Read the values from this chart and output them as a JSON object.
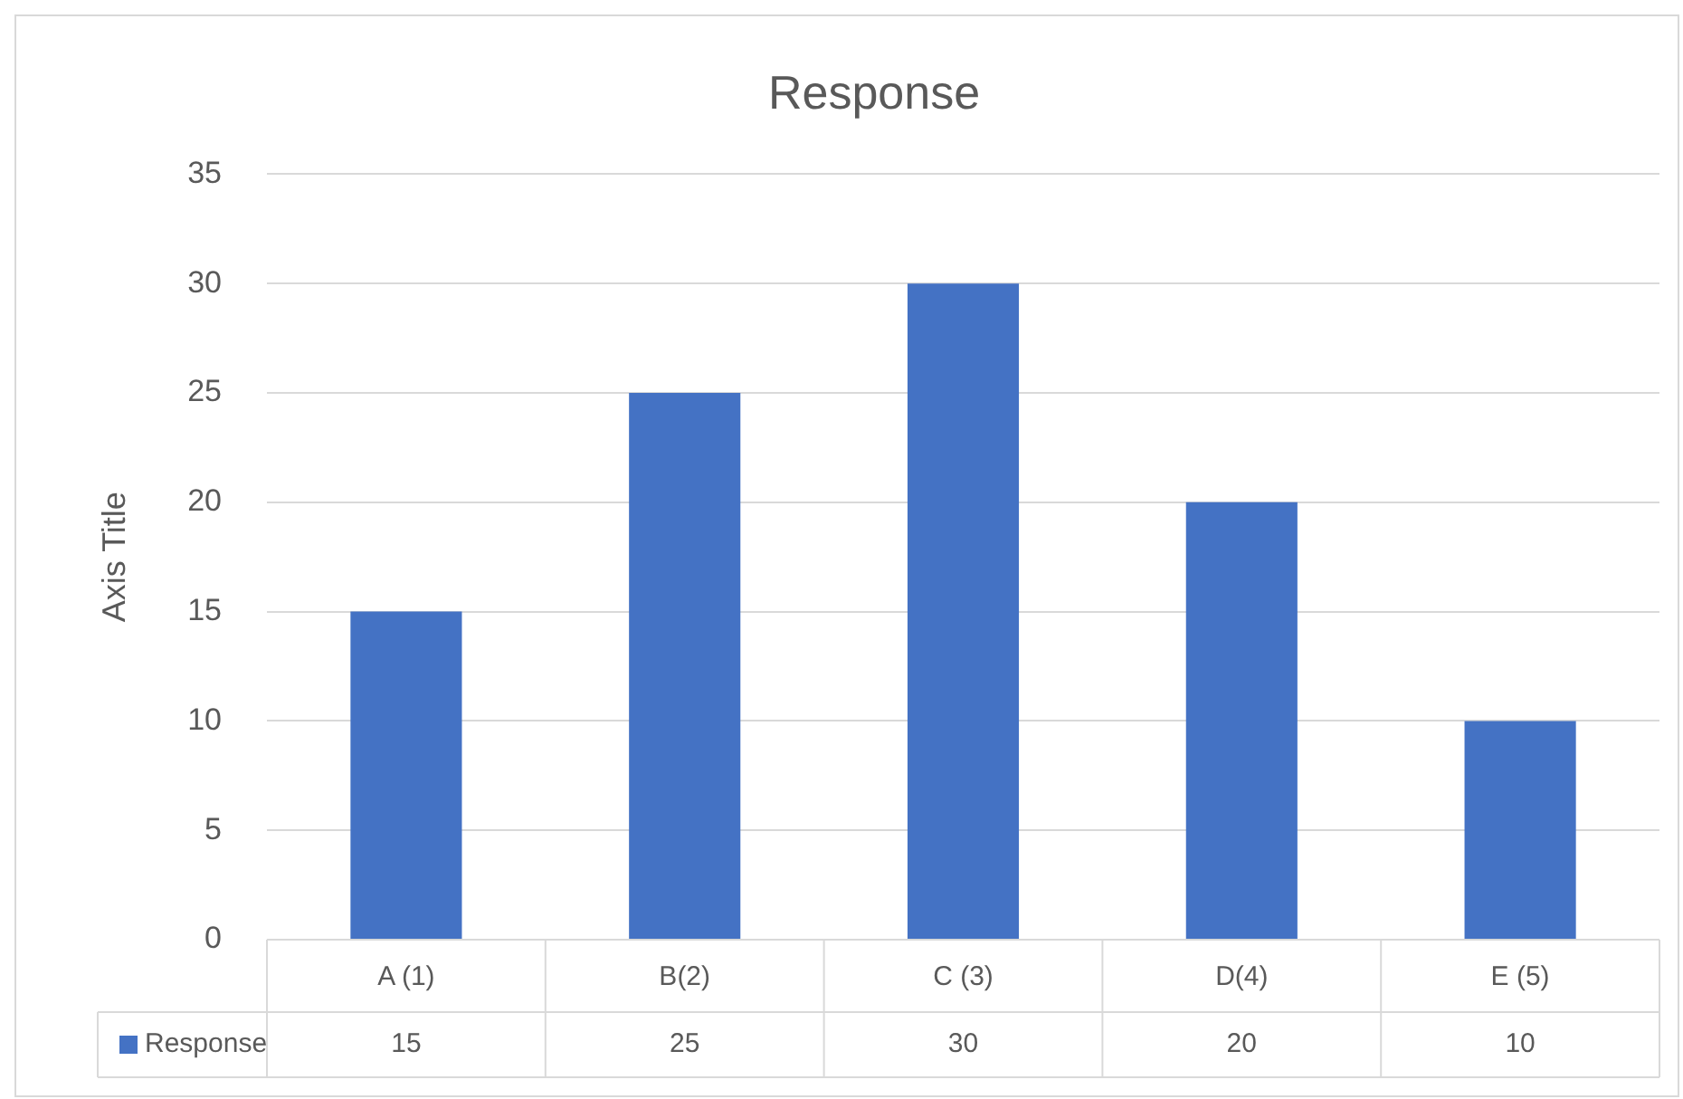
{
  "chart_data": {
    "type": "bar",
    "title": "Response",
    "ylabel": "Axis Title",
    "categories": [
      "A (1)",
      "B(2)",
      "C (3)",
      "D(4)",
      "E (5)"
    ],
    "series": [
      {
        "name": "Response",
        "color": "#4472c4",
        "values": [
          15,
          25,
          30,
          20,
          10
        ]
      }
    ],
    "ylim": [
      0,
      35
    ],
    "yticks": [
      0,
      5,
      10,
      15,
      20,
      25,
      30,
      35
    ],
    "grid": "y",
    "legend": "bottom",
    "data_labels": true
  }
}
